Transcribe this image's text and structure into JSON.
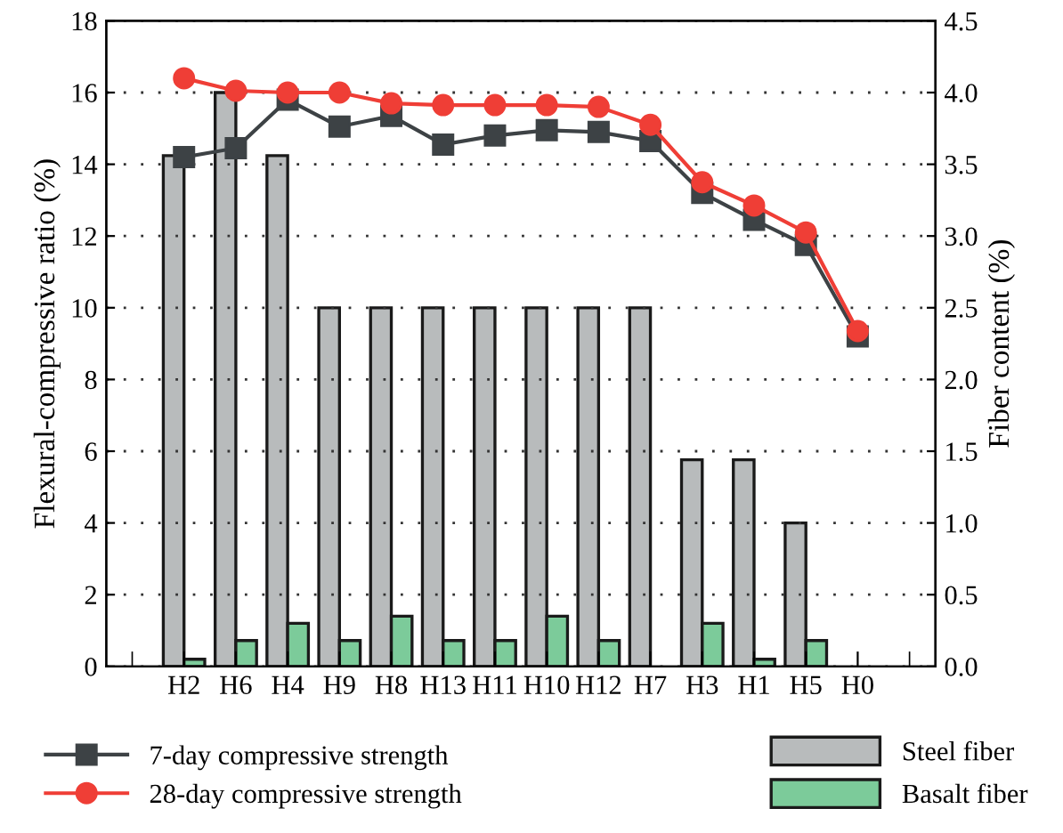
{
  "chart_data": {
    "type": "bar",
    "xlabel": null,
    "ylabel": "Flexural-compressive ratio (%)",
    "y2label": "Fiber content (%)",
    "categories": [
      "H2",
      "H6",
      "H4",
      "H9",
      "H8",
      "H13",
      "H11",
      "H10",
      "H12",
      "H7",
      "H3",
      "H1",
      "H5",
      "H0"
    ],
    "series": [
      {
        "name": "7-day compressive strength",
        "type": "line",
        "axis": "y",
        "color": "#3d4245",
        "marker": "square",
        "values": [
          14.2,
          14.45,
          15.8,
          15.05,
          15.35,
          14.55,
          14.8,
          14.95,
          14.9,
          14.65,
          13.2,
          12.45,
          11.75,
          9.2
        ]
      },
      {
        "name": "28-day compressive strength",
        "type": "line",
        "axis": "y",
        "color": "#ef3e36",
        "marker": "circle",
        "values": [
          16.4,
          16.05,
          16.0,
          16.0,
          15.7,
          15.65,
          15.65,
          15.65,
          15.6,
          15.1,
          13.5,
          12.85,
          12.1,
          9.35
        ]
      },
      {
        "name": "Steel fiber",
        "axis": "y2",
        "color": "#b8bbbc",
        "values": [
          3.56,
          4.0,
          3.56,
          2.5,
          2.5,
          2.5,
          2.5,
          2.5,
          2.5,
          2.5,
          1.44,
          1.44,
          1.0,
          null
        ]
      },
      {
        "name": "Basalt fiber",
        "axis": "y2",
        "color": "#7ccb9a",
        "values": [
          0.05,
          0.18,
          0.3,
          0.18,
          0.35,
          0.18,
          0.18,
          0.35,
          0.18,
          null,
          0.3,
          0.05,
          0.18,
          null
        ]
      }
    ],
    "ylim": [
      0,
      18
    ],
    "yticks": [
      0,
      2,
      4,
      6,
      8,
      10,
      12,
      14,
      16,
      18
    ],
    "y2lim": [
      0,
      4.5
    ],
    "y2ticks": [
      {
        "value": 0,
        "label": "0.0"
      },
      {
        "value": 0.5,
        "label": "0.5"
      },
      {
        "value": 1,
        "label": "1.0"
      },
      {
        "value": 1.5,
        "label": "1.5"
      },
      {
        "value": 2,
        "label": "2.0"
      },
      {
        "value": 2.5,
        "label": "2.5"
      },
      {
        "value": 3,
        "label": "3.0"
      },
      {
        "value": 3.5,
        "label": "3.5"
      },
      {
        "value": 4,
        "label": "4.0"
      },
      {
        "value": 4.5,
        "label": "4.5"
      }
    ],
    "grid": "y",
    "legend": "bottom"
  }
}
